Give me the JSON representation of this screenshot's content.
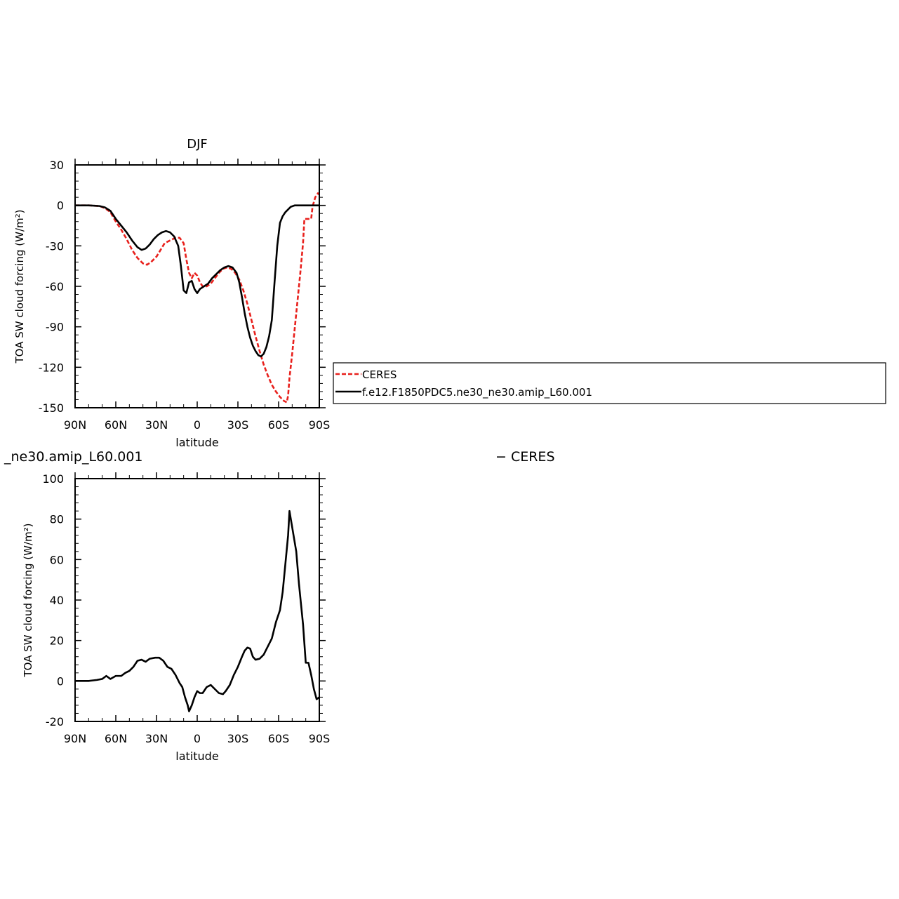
{
  "chart_data": [
    {
      "type": "line",
      "title": "DJF",
      "xlabel": "latitude",
      "ylabel": "TOA SW cloud forcing (W/m²)",
      "x_ticks": [
        {
          "lat": 90,
          "label": "90N"
        },
        {
          "lat": 60,
          "label": "60N"
        },
        {
          "lat": 30,
          "label": "30N"
        },
        {
          "lat": 0,
          "label": "0"
        },
        {
          "lat": -30,
          "label": "30S"
        },
        {
          "lat": -60,
          "label": "60S"
        },
        {
          "lat": -90,
          "label": "90S"
        }
      ],
      "xlim": [
        90,
        -90
      ],
      "ylim": [
        -150,
        30
      ],
      "y_ticks": [
        30,
        0,
        -30,
        -60,
        -90,
        -120,
        -150
      ],
      "legend": {
        "placement": "right",
        "entries": [
          "CERES",
          "f.e12.F1850PDC5.ne30_ne30.amip_L60.001"
        ]
      },
      "series": [
        {
          "name": "CERES",
          "color": "#e8201c",
          "dash": "dashed",
          "points": [
            [
              90,
              0
            ],
            [
              80,
              0
            ],
            [
              72,
              -0.5
            ],
            [
              68,
              -2
            ],
            [
              64,
              -5
            ],
            [
              60,
              -12
            ],
            [
              56,
              -18
            ],
            [
              52,
              -25
            ],
            [
              48,
              -33
            ],
            [
              44,
              -39
            ],
            [
              40,
              -43
            ],
            [
              37,
              -44
            ],
            [
              34,
              -42
            ],
            [
              30,
              -38
            ],
            [
              27,
              -33
            ],
            [
              24,
              -28
            ],
            [
              20,
              -26
            ],
            [
              16,
              -24
            ],
            [
              13,
              -24
            ],
            [
              10,
              -28
            ],
            [
              8,
              -40
            ],
            [
              6,
              -50
            ],
            [
              4,
              -54
            ],
            [
              2,
              -50
            ],
            [
              0,
              -52
            ],
            [
              -2,
              -57
            ],
            [
              -4,
              -60
            ],
            [
              -7,
              -60
            ],
            [
              -10,
              -58
            ],
            [
              -13,
              -54
            ],
            [
              -16,
              -50
            ],
            [
              -19,
              -47
            ],
            [
              -22,
              -46
            ],
            [
              -25,
              -47
            ],
            [
              -28,
              -50
            ],
            [
              -31,
              -55
            ],
            [
              -34,
              -63
            ],
            [
              -37,
              -73
            ],
            [
              -40,
              -85
            ],
            [
              -43,
              -97
            ],
            [
              -46,
              -108
            ],
            [
              -49,
              -118
            ],
            [
              -52,
              -126
            ],
            [
              -55,
              -133
            ],
            [
              -58,
              -138
            ],
            [
              -61,
              -142
            ],
            [
              -64,
              -145
            ],
            [
              -66,
              -146
            ],
            [
              -67,
              -141
            ],
            [
              -68,
              -128
            ],
            [
              -70,
              -110
            ],
            [
              -72,
              -90
            ],
            [
              -74,
              -70
            ],
            [
              -76,
              -50
            ],
            [
              -78,
              -28
            ],
            [
              -79,
              -10
            ],
            [
              -82,
              -10
            ],
            [
              -84,
              -10
            ],
            [
              -85,
              -1
            ],
            [
              -87,
              6
            ],
            [
              -89,
              9
            ],
            [
              -90,
              8
            ]
          ]
        },
        {
          "name": "f.e12.F1850PDC5.ne30_ne30.amip_L60.001",
          "color": "#000000",
          "dash": "solid",
          "points": [
            [
              90,
              0
            ],
            [
              80,
              0
            ],
            [
              72,
              -0.5
            ],
            [
              68,
              -1.5
            ],
            [
              64,
              -4
            ],
            [
              60,
              -10
            ],
            [
              56,
              -15
            ],
            [
              52,
              -20
            ],
            [
              48,
              -26
            ],
            [
              44,
              -31
            ],
            [
              41,
              -33
            ],
            [
              38,
              -32
            ],
            [
              35,
              -29
            ],
            [
              32,
              -25
            ],
            [
              29,
              -22
            ],
            [
              26,
              -20
            ],
            [
              23,
              -19
            ],
            [
              20,
              -20
            ],
            [
              17,
              -23
            ],
            [
              14,
              -30
            ],
            [
              12,
              -45
            ],
            [
              10,
              -63
            ],
            [
              8,
              -65
            ],
            [
              6,
              -57
            ],
            [
              4,
              -56
            ],
            [
              2,
              -62
            ],
            [
              0,
              -65
            ],
            [
              -2,
              -62
            ],
            [
              -5,
              -60
            ],
            [
              -8,
              -58
            ],
            [
              -11,
              -54
            ],
            [
              -14,
              -51
            ],
            [
              -17,
              -48
            ],
            [
              -20,
              -46
            ],
            [
              -23,
              -45
            ],
            [
              -26,
              -46
            ],
            [
              -29,
              -50
            ],
            [
              -31,
              -57
            ],
            [
              -33,
              -68
            ],
            [
              -35,
              -80
            ],
            [
              -37,
              -90
            ],
            [
              -39,
              -98
            ],
            [
              -41,
              -104
            ],
            [
              -43,
              -108
            ],
            [
              -45,
              -111
            ],
            [
              -47,
              -112
            ],
            [
              -49,
              -110
            ],
            [
              -51,
              -105
            ],
            [
              -53,
              -97
            ],
            [
              -55,
              -85
            ],
            [
              -57,
              -57
            ],
            [
              -59,
              -30
            ],
            [
              -61,
              -13
            ],
            [
              -63,
              -8
            ],
            [
              -65,
              -5
            ],
            [
              -67,
              -3
            ],
            [
              -69,
              -1
            ],
            [
              -72,
              0
            ],
            [
              -80,
              0
            ],
            [
              -90,
              0
            ]
          ]
        }
      ]
    },
    {
      "type": "line",
      "title": "_ne30.amip_L60.001",
      "title_right": "− CERES",
      "xlabel": "latitude",
      "ylabel": "TOA SW cloud forcing (W/m²)",
      "x_ticks": [
        {
          "lat": 90,
          "label": "90N"
        },
        {
          "lat": 60,
          "label": "60N"
        },
        {
          "lat": 30,
          "label": "30N"
        },
        {
          "lat": 0,
          "label": "0"
        },
        {
          "lat": -30,
          "label": "30S"
        },
        {
          "lat": -60,
          "label": "60S"
        },
        {
          "lat": -90,
          "label": "90S"
        }
      ],
      "xlim": [
        90,
        -90
      ],
      "ylim": [
        -20,
        100
      ],
      "y_ticks": [
        100,
        80,
        60,
        40,
        20,
        0,
        -20
      ],
      "series": [
        {
          "color": "#000000",
          "dash": "solid",
          "points": [
            [
              90,
              0
            ],
            [
              80,
              0
            ],
            [
              74,
              0.5
            ],
            [
              70,
              1
            ],
            [
              67,
              2.5
            ],
            [
              64,
              1
            ],
            [
              60,
              2.5
            ],
            [
              56,
              2.5
            ],
            [
              53,
              4
            ],
            [
              50,
              5
            ],
            [
              47,
              7
            ],
            [
              44,
              10
            ],
            [
              41,
              10.5
            ],
            [
              38,
              9.5
            ],
            [
              35,
              11
            ],
            [
              31,
              11.5
            ],
            [
              28,
              11.5
            ],
            [
              25,
              10
            ],
            [
              22,
              7
            ],
            [
              19,
              6
            ],
            [
              16,
              3
            ],
            [
              13,
              -1
            ],
            [
              11,
              -3
            ],
            [
              9,
              -8
            ],
            [
              7,
              -12
            ],
            [
              6,
              -15
            ],
            [
              4,
              -12
            ],
            [
              2,
              -8
            ],
            [
              0,
              -5
            ],
            [
              -2,
              -6
            ],
            [
              -4,
              -6
            ],
            [
              -7,
              -3
            ],
            [
              -10,
              -2
            ],
            [
              -13,
              -4
            ],
            [
              -16,
              -6
            ],
            [
              -19,
              -6.5
            ],
            [
              -21,
              -5
            ],
            [
              -24,
              -2
            ],
            [
              -27,
              3
            ],
            [
              -30,
              7
            ],
            [
              -33,
              12
            ],
            [
              -35,
              15
            ],
            [
              -37,
              16.5
            ],
            [
              -39,
              16
            ],
            [
              -41,
              12
            ],
            [
              -43,
              10.5
            ],
            [
              -46,
              11
            ],
            [
              -49,
              13
            ],
            [
              -52,
              17
            ],
            [
              -55,
              21
            ],
            [
              -58,
              29
            ],
            [
              -61,
              35
            ],
            [
              -63,
              44
            ],
            [
              -65,
              58
            ],
            [
              -67,
              72
            ],
            [
              -68,
              84
            ],
            [
              -70,
              76
            ],
            [
              -73,
              64
            ],
            [
              -75,
              48
            ],
            [
              -78,
              28
            ],
            [
              -80,
              9
            ],
            [
              -82,
              9
            ],
            [
              -84,
              3
            ],
            [
              -86,
              -4
            ],
            [
              -88,
              -9
            ],
            [
              -90,
              -8
            ]
          ]
        }
      ]
    }
  ]
}
